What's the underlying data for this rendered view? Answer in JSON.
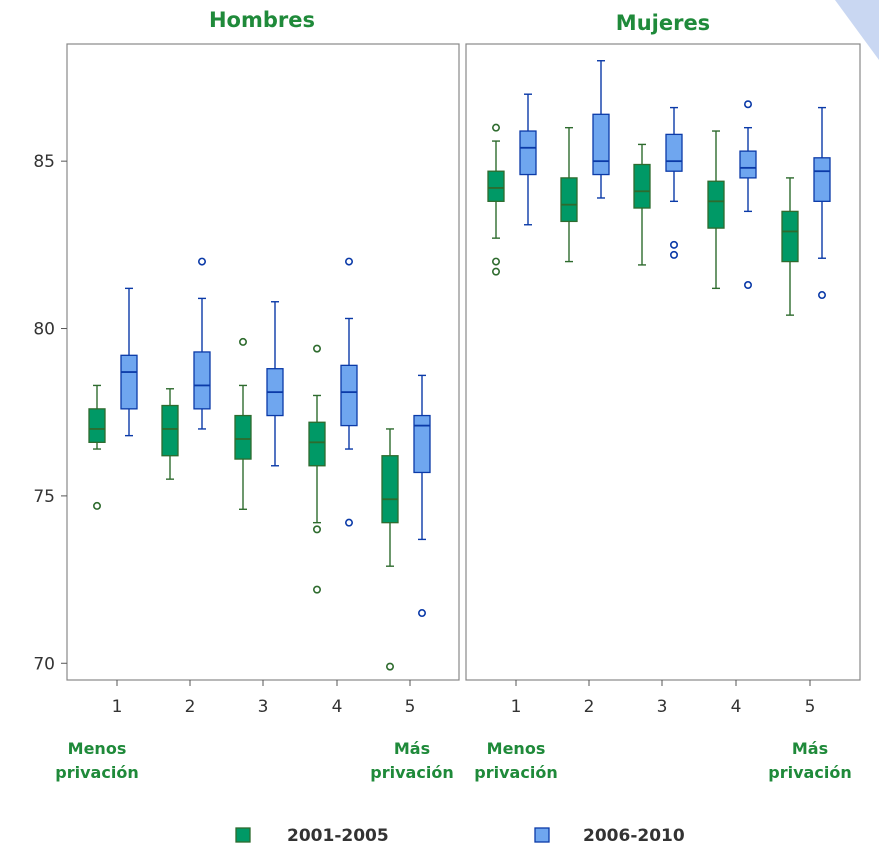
{
  "colors": {
    "series_fill": [
      "#009966",
      "#6fa6ef"
    ],
    "series_stroke": [
      "#2e6b2e",
      "#0b3aa8"
    ],
    "title_color": "#1f8a3a",
    "frame": "#888888",
    "accent_corner": "#c9d7f2"
  },
  "chart_data": [
    {
      "type": "box",
      "title": "Hombres",
      "categories": [
        "1",
        "2",
        "3",
        "4",
        "5"
      ],
      "category_notes": {
        "left": [
          "Menos",
          "privación"
        ],
        "right": [
          "Más",
          "privación"
        ]
      },
      "ylim": [
        69.5,
        88.5
      ],
      "yticks": [
        70,
        75,
        80,
        85
      ],
      "grid": false,
      "series": [
        {
          "name": "2001-2005",
          "boxes": [
            {
              "whisker_low": 76.4,
              "q1": 76.6,
              "median": 77.0,
              "q3": 77.6,
              "whisker_high": 78.3,
              "outliers": [
                74.7
              ]
            },
            {
              "whisker_low": 75.5,
              "q1": 76.2,
              "median": 77.0,
              "q3": 77.7,
              "whisker_high": 78.2,
              "outliers": []
            },
            {
              "whisker_low": 74.6,
              "q1": 76.1,
              "median": 76.7,
              "q3": 77.4,
              "whisker_high": 78.3,
              "outliers": [
                79.6
              ]
            },
            {
              "whisker_low": 74.2,
              "q1": 75.9,
              "median": 76.6,
              "q3": 77.2,
              "whisker_high": 78.0,
              "outliers": [
                79.4,
                74.0,
                72.2
              ]
            },
            {
              "whisker_low": 72.9,
              "q1": 74.2,
              "median": 74.9,
              "q3": 76.2,
              "whisker_high": 77.0,
              "outliers": [
                69.9
              ]
            }
          ]
        },
        {
          "name": "2006-2010",
          "boxes": [
            {
              "whisker_low": 76.8,
              "q1": 77.6,
              "median": 78.7,
              "q3": 79.2,
              "whisker_high": 81.2,
              "outliers": []
            },
            {
              "whisker_low": 77.0,
              "q1": 77.6,
              "median": 78.3,
              "q3": 79.3,
              "whisker_high": 80.9,
              "outliers": [
                82.0
              ]
            },
            {
              "whisker_low": 75.9,
              "q1": 77.4,
              "median": 78.1,
              "q3": 78.8,
              "whisker_high": 80.8,
              "outliers": []
            },
            {
              "whisker_low": 76.4,
              "q1": 77.1,
              "median": 78.1,
              "q3": 78.9,
              "whisker_high": 80.3,
              "outliers": [
                82.0,
                74.2
              ]
            },
            {
              "whisker_low": 73.7,
              "q1": 75.7,
              "median": 77.1,
              "q3": 77.4,
              "whisker_high": 78.6,
              "outliers": [
                71.5
              ]
            }
          ]
        }
      ]
    },
    {
      "type": "box",
      "title": "Mujeres",
      "categories": [
        "1",
        "2",
        "3",
        "4",
        "5"
      ],
      "category_notes": {
        "left": [
          "Menos",
          "privación"
        ],
        "right": [
          "Más",
          "privación"
        ]
      },
      "ylim": [
        69.5,
        88.5
      ],
      "yticks": [
        70,
        75,
        80,
        85
      ],
      "grid": false,
      "series": [
        {
          "name": "2001-2005",
          "boxes": [
            {
              "whisker_low": 82.7,
              "q1": 83.8,
              "median": 84.2,
              "q3": 84.7,
              "whisker_high": 85.6,
              "outliers": [
                86.0,
                82.0,
                81.7
              ]
            },
            {
              "whisker_low": 82.0,
              "q1": 83.2,
              "median": 83.7,
              "q3": 84.5,
              "whisker_high": 86.0,
              "outliers": []
            },
            {
              "whisker_low": 81.9,
              "q1": 83.6,
              "median": 84.1,
              "q3": 84.9,
              "whisker_high": 85.5,
              "outliers": []
            },
            {
              "whisker_low": 81.2,
              "q1": 83.0,
              "median": 83.8,
              "q3": 84.4,
              "whisker_high": 85.9,
              "outliers": []
            },
            {
              "whisker_low": 80.4,
              "q1": 82.0,
              "median": 82.9,
              "q3": 83.5,
              "whisker_high": 84.5,
              "outliers": []
            }
          ]
        },
        {
          "name": "2006-2010",
          "boxes": [
            {
              "whisker_low": 83.1,
              "q1": 84.6,
              "median": 85.4,
              "q3": 85.9,
              "whisker_high": 87.0,
              "outliers": []
            },
            {
              "whisker_low": 83.9,
              "q1": 84.6,
              "median": 85.0,
              "q3": 86.4,
              "whisker_high": 88.0,
              "outliers": []
            },
            {
              "whisker_low": 83.8,
              "q1": 84.7,
              "median": 85.0,
              "q3": 85.8,
              "whisker_high": 86.6,
              "outliers": [
                82.5,
                82.2
              ]
            },
            {
              "whisker_low": 83.5,
              "q1": 84.5,
              "median": 84.8,
              "q3": 85.3,
              "whisker_high": 86.0,
              "outliers": [
                86.7,
                81.3
              ]
            },
            {
              "whisker_low": 82.1,
              "q1": 83.8,
              "median": 84.7,
              "q3": 85.1,
              "whisker_high": 86.6,
              "outliers": [
                81.0
              ]
            }
          ]
        }
      ]
    }
  ]
}
